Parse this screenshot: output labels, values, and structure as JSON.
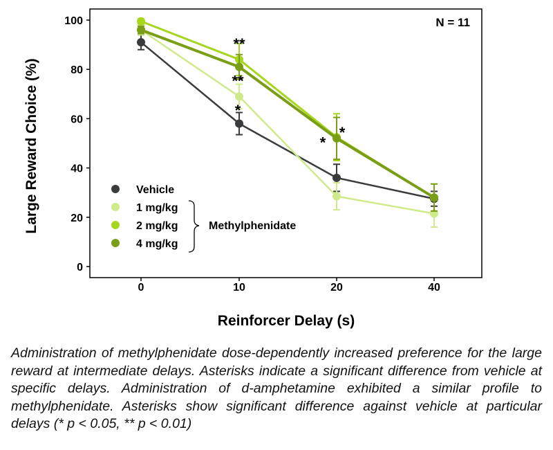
{
  "chart_data": {
    "type": "line",
    "categories": [
      "0",
      "10",
      "20",
      "40"
    ],
    "ylabel": "Large Reward Choice (%)",
    "xlabel": "Reinforcer Delay (s)",
    "ylim": [
      0,
      100
    ],
    "yticks": [
      0,
      20,
      40,
      60,
      80,
      100
    ],
    "annotation": "N = 11",
    "legend_group_label": "Methylphenidate",
    "legend_placement": "bottom-left",
    "grid": false,
    "series": [
      {
        "name": "Vehicle",
        "color": "#3a3b3d",
        "values": [
          91,
          58,
          36,
          27.5
        ],
        "errors": [
          3,
          4.5,
          5.5,
          3
        ]
      },
      {
        "name": "1 mg/kg",
        "color": "#cfea8a",
        "values": [
          96,
          69,
          28.5,
          21.5
        ],
        "errors": [
          2,
          5,
          5.5,
          5.5
        ]
      },
      {
        "name": "2 mg/kg",
        "color": "#a6d61e",
        "values": [
          99.5,
          84,
          52.5,
          28
        ],
        "errors": [
          1,
          6.5,
          9.5,
          5.5
        ]
      },
      {
        "name": "4 mg/kg",
        "color": "#7a9e16",
        "values": [
          96,
          81,
          52,
          28
        ],
        "errors": [
          1.5,
          5,
          8.5,
          5.5
        ]
      }
    ],
    "significance_markers": [
      {
        "text": "**",
        "x": "10",
        "y": 91
      },
      {
        "text": "**",
        "x": "10",
        "y": 76
      },
      {
        "text": "*",
        "x": "10",
        "y": 64
      },
      {
        "text": "*",
        "x": "20",
        "y": 51
      },
      {
        "text": "*",
        "x": "20",
        "y": 55
      }
    ]
  },
  "caption": "Administration of methylphenidate dose-dependently increased preference for the large reward at intermediate delays. Asterisks indicate a significant difference from vehicle at specific delays. Administration of d-amphetamine exhibited a similar profile to methylphenidate. Asterisks show significant difference against vehicle at particular delays (* p < 0.05, ** p < 0.01)"
}
